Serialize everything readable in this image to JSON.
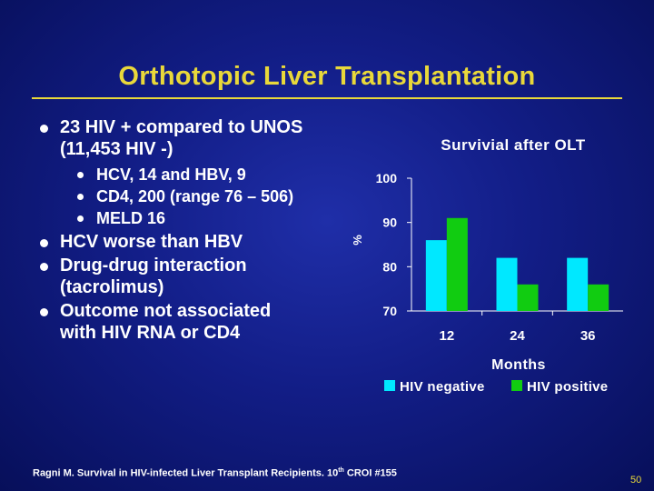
{
  "slide": {
    "title": "Orthotopic Liver Transplantation",
    "page_number": "50",
    "footnote_text": "Ragni M. Survival in HIV-infected Liver Transplant Recipients. 10",
    "footnote_sup": "th",
    "footnote_tail": " CROI #155"
  },
  "bullets": [
    {
      "text_line1": "23 HIV + compared to UNOS",
      "text_line2": "(11,453 HIV -)"
    },
    {
      "text_line1": "HCV worse than HBV"
    },
    {
      "text_line1": "Drug-drug interaction",
      "text_line2": "(tacrolimus)"
    },
    {
      "text_line1": "Outcome not associated",
      "text_line2": "with HIV RNA or CD4"
    }
  ],
  "sub_bullets": [
    {
      "text": "HCV, 14 and HBV, 9"
    },
    {
      "text": "CD4, 200 (range 76 – 506)"
    },
    {
      "text": "MELD 16"
    }
  ],
  "chart_data": {
    "type": "bar",
    "title": "Survivial after OLT",
    "xlabel": "Months",
    "ylabel": "%",
    "categories": [
      "12",
      "24",
      "36"
    ],
    "series": [
      {
        "name": "HIV negative",
        "color": "#00e8ff",
        "values": [
          86,
          82,
          82
        ]
      },
      {
        "name": "HIV positive",
        "color": "#11cc11",
        "values": [
          91,
          76,
          76
        ]
      }
    ],
    "ylim": [
      70,
      100
    ],
    "yticks": [
      100,
      90,
      80,
      70
    ],
    "legend_position": "bottom"
  }
}
